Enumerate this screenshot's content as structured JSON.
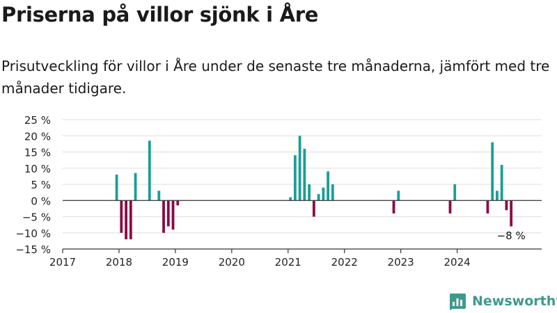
{
  "header": {
    "title": "Priserna på villor sjönk i Åre",
    "subtitle": "Prisutveckling för villor i Åre under de senaste tre månaderna, jämfört med tre månader tidigare."
  },
  "brand": {
    "name": "Newsworthy",
    "icon": "bar-chart-icon",
    "color": "#3d9a8d"
  },
  "chart_data": {
    "type": "bar",
    "ylim": [
      -15,
      25
    ],
    "yticks": [
      25,
      20,
      15,
      10,
      5,
      0,
      -5,
      -10,
      -15
    ],
    "ytick_labels": [
      "25 %",
      "20 %",
      "15 %",
      "10 %",
      "5 %",
      "0 %",
      "−5 %",
      "−10 %",
      "−15 %"
    ],
    "xlim": [
      "2017-01",
      "2025-07"
    ],
    "xtick_labels": [
      "2017",
      "2018",
      "2019",
      "2020",
      "2021",
      "2022",
      "2023",
      "2024"
    ],
    "grid": true,
    "colors": {
      "positive": "#1a9e96",
      "negative": "#8b0a45"
    },
    "annotation": {
      "text": "−8 %",
      "month": "2024-12"
    },
    "points": [
      {
        "month": "2017-12",
        "value": 8
      },
      {
        "month": "2018-01",
        "value": -10
      },
      {
        "month": "2018-02",
        "value": -12
      },
      {
        "month": "2018-03",
        "value": -12
      },
      {
        "month": "2018-04",
        "value": 8.5
      },
      {
        "month": "2018-07",
        "value": 18.5
      },
      {
        "month": "2018-09",
        "value": 3
      },
      {
        "month": "2018-10",
        "value": -10
      },
      {
        "month": "2018-11",
        "value": -8
      },
      {
        "month": "2018-12",
        "value": -9
      },
      {
        "month": "2019-01",
        "value": -1.5
      },
      {
        "month": "2021-01",
        "value": 1
      },
      {
        "month": "2021-02",
        "value": 14
      },
      {
        "month": "2021-03",
        "value": 20
      },
      {
        "month": "2021-04",
        "value": 16
      },
      {
        "month": "2021-05",
        "value": 5
      },
      {
        "month": "2021-06",
        "value": -5
      },
      {
        "month": "2021-07",
        "value": 2
      },
      {
        "month": "2021-08",
        "value": 4
      },
      {
        "month": "2021-09",
        "value": 9
      },
      {
        "month": "2021-10",
        "value": 5
      },
      {
        "month": "2022-11",
        "value": -4
      },
      {
        "month": "2022-12",
        "value": 3
      },
      {
        "month": "2023-11",
        "value": -4
      },
      {
        "month": "2023-12",
        "value": 5
      },
      {
        "month": "2024-07",
        "value": -4
      },
      {
        "month": "2024-08",
        "value": 18
      },
      {
        "month": "2024-09",
        "value": 3
      },
      {
        "month": "2024-10",
        "value": 11
      },
      {
        "month": "2024-11",
        "value": -3
      },
      {
        "month": "2024-12",
        "value": -8
      }
    ]
  }
}
